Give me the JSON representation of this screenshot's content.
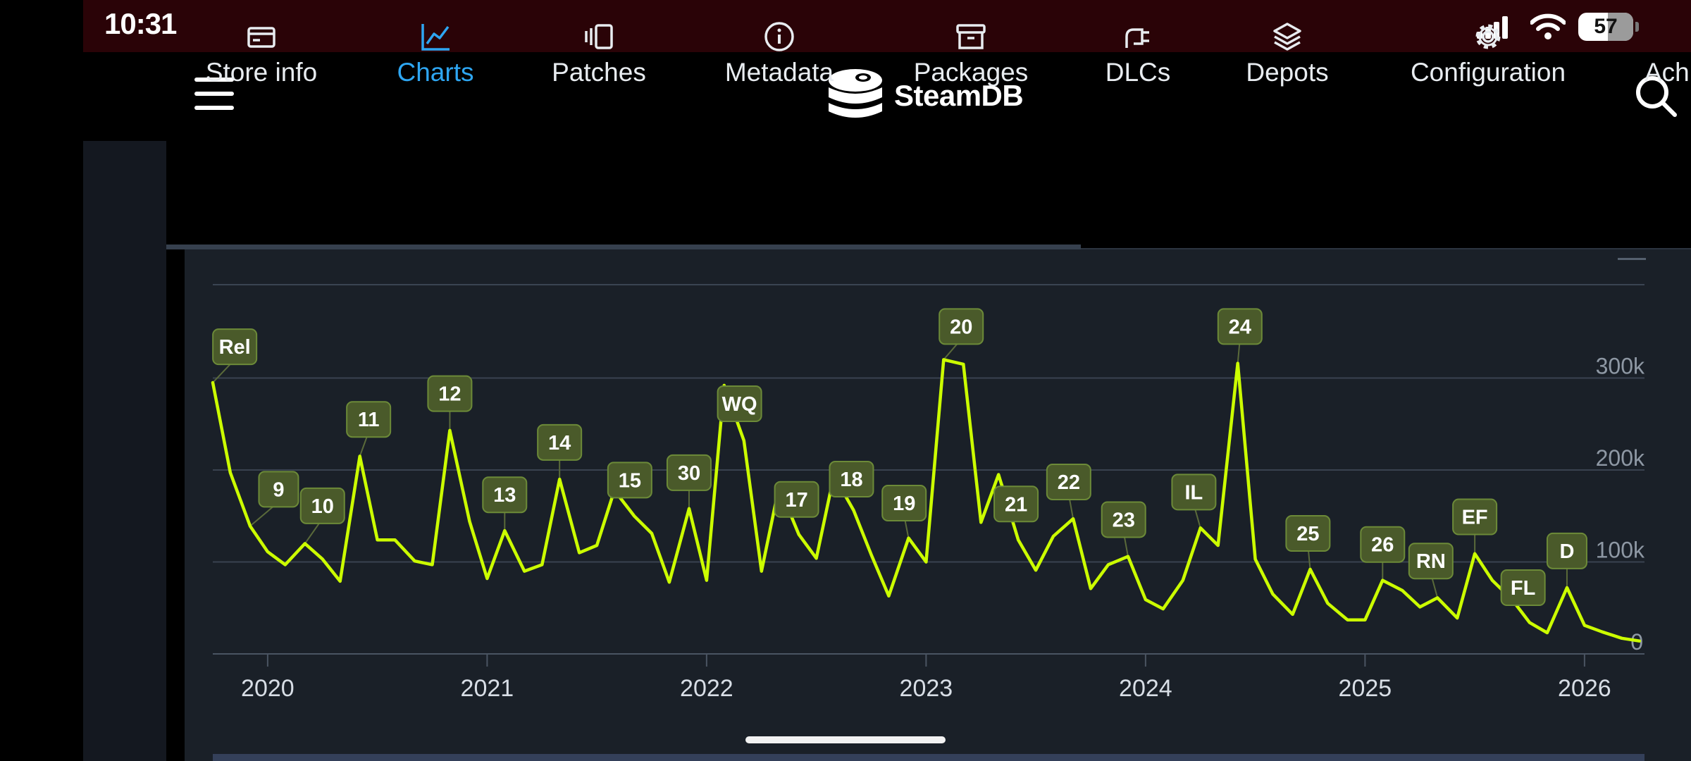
{
  "status_bar": {
    "time": "10:31",
    "battery": "57",
    "icons": [
      "signal-icon",
      "wifi-icon",
      "battery-icon"
    ]
  },
  "header": {
    "logo_text": "SteamDB",
    "icons": [
      "menu-icon",
      "steamdb-logo-icon",
      "search-icon"
    ]
  },
  "tabs": [
    {
      "label": "Store info",
      "icon": "card-icon",
      "active": false
    },
    {
      "label": "Charts",
      "icon": "chart-icon",
      "active": true
    },
    {
      "label": "Patches",
      "icon": "patches-icon",
      "active": false
    },
    {
      "label": "Metadata",
      "icon": "info-icon",
      "active": false
    },
    {
      "label": "Packages",
      "icon": "archive-icon",
      "active": false
    },
    {
      "label": "DLCs",
      "icon": "plug-icon",
      "active": false
    },
    {
      "label": "Depots",
      "icon": "layers-icon",
      "active": false
    },
    {
      "label": "Configuration",
      "icon": "gear-icon",
      "active": false
    },
    {
      "label": "Ach",
      "icon": "",
      "active": false
    }
  ],
  "colors": {
    "line": "#ccff00",
    "accent": "#2ea6f2",
    "panel": "#1a2028",
    "flag_bg": "#4a5a2a",
    "flag_border": "#6c8a38",
    "status_bar": "#2a0307"
  },
  "chart_data": {
    "type": "line",
    "x_ticks": [
      "2020",
      "2021",
      "2022",
      "2023",
      "2024",
      "2025",
      "2026"
    ],
    "y_ticks": [
      "0",
      "100k",
      "200k",
      "300k"
    ],
    "ylim": [
      0,
      330000
    ],
    "grid": true,
    "series": [
      {
        "points": [
          [
            2019.75,
            295000
          ],
          [
            2019.83,
            197000
          ],
          [
            2019.92,
            139000
          ],
          [
            2020.0,
            111000
          ],
          [
            2020.08,
            97000
          ],
          [
            2020.17,
            120000
          ],
          [
            2020.25,
            103000
          ],
          [
            2020.33,
            79000
          ],
          [
            2020.42,
            215000
          ],
          [
            2020.5,
            124000
          ],
          [
            2020.58,
            124000
          ],
          [
            2020.67,
            101000
          ],
          [
            2020.75,
            97000
          ],
          [
            2020.83,
            243000
          ],
          [
            2020.92,
            144000
          ],
          [
            2021.0,
            82000
          ],
          [
            2021.08,
            134000
          ],
          [
            2021.17,
            90000
          ],
          [
            2021.25,
            97000
          ],
          [
            2021.33,
            190000
          ],
          [
            2021.42,
            110000
          ],
          [
            2021.5,
            118000
          ],
          [
            2021.58,
            178000
          ],
          [
            2021.67,
            150000
          ],
          [
            2021.75,
            131000
          ],
          [
            2021.83,
            78000
          ],
          [
            2021.92,
            158000
          ],
          [
            2022.0,
            80000
          ],
          [
            2022.08,
            292000
          ],
          [
            2022.17,
            232000
          ],
          [
            2022.25,
            90000
          ],
          [
            2022.33,
            182000
          ],
          [
            2022.42,
            130000
          ],
          [
            2022.5,
            104000
          ],
          [
            2022.58,
            194000
          ],
          [
            2022.67,
            156000
          ],
          [
            2022.75,
            108000
          ],
          [
            2022.83,
            63000
          ],
          [
            2022.92,
            126000
          ],
          [
            2023.0,
            100000
          ],
          [
            2023.08,
            320000
          ],
          [
            2023.17,
            315000
          ],
          [
            2023.25,
            143000
          ],
          [
            2023.33,
            195000
          ],
          [
            2023.42,
            124000
          ],
          [
            2023.5,
            91000
          ],
          [
            2023.58,
            128000
          ],
          [
            2023.67,
            147000
          ],
          [
            2023.75,
            71000
          ],
          [
            2023.83,
            97000
          ],
          [
            2023.92,
            106000
          ],
          [
            2024.0,
            59000
          ],
          [
            2024.08,
            49000
          ],
          [
            2024.17,
            80000
          ],
          [
            2024.25,
            137000
          ],
          [
            2024.33,
            118000
          ],
          [
            2024.42,
            316000
          ],
          [
            2024.5,
            103000
          ],
          [
            2024.58,
            65000
          ],
          [
            2024.67,
            43000
          ],
          [
            2024.75,
            92000
          ],
          [
            2024.83,
            55000
          ],
          [
            2024.92,
            37000
          ],
          [
            2025.0,
            37000
          ],
          [
            2025.08,
            80000
          ],
          [
            2025.17,
            69000
          ],
          [
            2025.25,
            51000
          ],
          [
            2025.33,
            61000
          ],
          [
            2025.42,
            39000
          ],
          [
            2025.5,
            109000
          ],
          [
            2025.58,
            80000
          ],
          [
            2025.67,
            59000
          ],
          [
            2025.75,
            34000
          ],
          [
            2025.83,
            23000
          ],
          [
            2025.92,
            72000
          ],
          [
            2026.0,
            31000
          ],
          [
            2026.08,
            24000
          ],
          [
            2026.17,
            17000
          ],
          [
            2026.25,
            14000
          ]
        ]
      }
    ],
    "annotations": [
      {
        "label": "Rel",
        "x": 2019.75,
        "y": 295000,
        "ly": 334000,
        "lx": 2019.85
      },
      {
        "label": "9",
        "x": 2019.92,
        "y": 139000,
        "ly": 179000,
        "lx": 2020.05
      },
      {
        "label": "10",
        "x": 2020.17,
        "y": 120000,
        "ly": 161000,
        "lx": 2020.25
      },
      {
        "label": "11",
        "x": 2020.42,
        "y": 215000,
        "ly": 255000,
        "lx": 2020.46
      },
      {
        "label": "12",
        "x": 2020.83,
        "y": 243000,
        "ly": 283000,
        "lx": 2020.83
      },
      {
        "label": "13",
        "x": 2021.08,
        "y": 134000,
        "ly": 173000,
        "lx": 2021.08
      },
      {
        "label": "14",
        "x": 2021.33,
        "y": 190000,
        "ly": 230000,
        "lx": 2021.33
      },
      {
        "label": "15",
        "x": 2021.58,
        "y": 178000,
        "ly": 189000,
        "lx": 2021.65
      },
      {
        "label": "30",
        "x": 2021.92,
        "y": 158000,
        "ly": 197000,
        "lx": 2021.92
      },
      {
        "label": "WQ",
        "x": 2022.08,
        "y": 292000,
        "ly": 272000,
        "lx": 2022.15
      },
      {
        "label": "17",
        "x": 2022.33,
        "y": 182000,
        "ly": 168000,
        "lx": 2022.41
      },
      {
        "label": "18",
        "x": 2022.58,
        "y": 194000,
        "ly": 190000,
        "lx": 2022.66
      },
      {
        "label": "19",
        "x": 2022.92,
        "y": 126000,
        "ly": 164000,
        "lx": 2022.9
      },
      {
        "label": "20",
        "x": 2023.08,
        "y": 320000,
        "ly": 356000,
        "lx": 2023.16
      },
      {
        "label": "21",
        "x": 2023.33,
        "y": 195000,
        "ly": 163000,
        "lx": 2023.41
      },
      {
        "label": "22",
        "x": 2023.67,
        "y": 147000,
        "ly": 187000,
        "lx": 2023.65
      },
      {
        "label": "23",
        "x": 2023.92,
        "y": 106000,
        "ly": 146000,
        "lx": 2023.9
      },
      {
        "label": "IL",
        "x": 2024.25,
        "y": 137000,
        "ly": 176000,
        "lx": 2024.22
      },
      {
        "label": "24",
        "x": 2024.42,
        "y": 316000,
        "ly": 356000,
        "lx": 2024.43
      },
      {
        "label": "25",
        "x": 2024.75,
        "y": 92000,
        "ly": 131000,
        "lx": 2024.74
      },
      {
        "label": "26",
        "x": 2025.08,
        "y": 80000,
        "ly": 119000,
        "lx": 2025.08
      },
      {
        "label": "RN",
        "x": 2025.33,
        "y": 61000,
        "ly": 101000,
        "lx": 2025.3
      },
      {
        "label": "EF",
        "x": 2025.5,
        "y": 109000,
        "ly": 149000,
        "lx": 2025.5
      },
      {
        "label": "FL",
        "x": 2025.67,
        "y": 59000,
        "ly": 72000,
        "lx": 2025.72
      },
      {
        "label": "D",
        "x": 2025.92,
        "y": 72000,
        "ly": 112000,
        "lx": 2025.92
      }
    ]
  }
}
